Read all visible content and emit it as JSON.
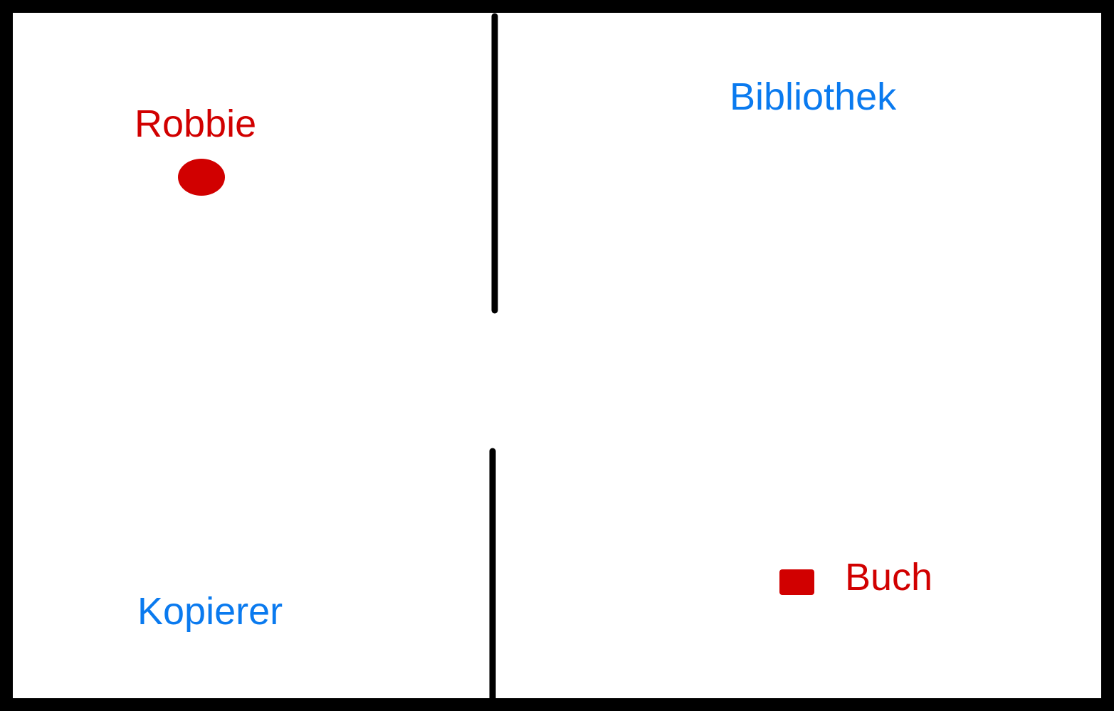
{
  "colors": {
    "wall": "#000000",
    "room_label": "#0a7aef",
    "entity": "#d10000",
    "background": "#ffffff"
  },
  "rooms": {
    "library": {
      "label": "Bibliothek"
    },
    "copier": {
      "label": "Kopierer"
    }
  },
  "entities": {
    "robot": {
      "label": "Robbie",
      "shape": "circle-marker"
    },
    "book": {
      "label": "Buch",
      "shape": "square-marker"
    }
  }
}
